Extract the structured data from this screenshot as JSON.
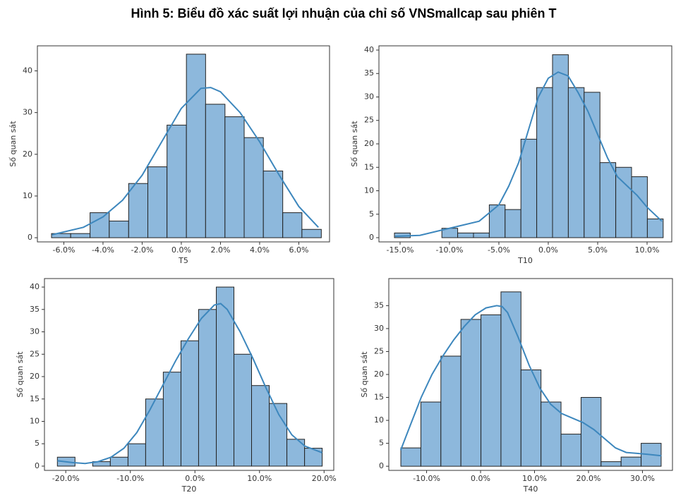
{
  "title": "Hình 5: Biểu đồ xác suất lợi nhuận của chỉ số VNSmallcap sau phiên T",
  "chart_data": [
    {
      "type": "histogram",
      "x_label": "T5",
      "y_label": "Số quan sát",
      "bins": [
        -6.63,
        -5.65,
        -4.66,
        -3.68,
        -2.69,
        -1.71,
        -0.73,
        0.26,
        1.24,
        2.23,
        3.21,
        4.19,
        5.18,
        6.16,
        7.15
      ],
      "values": [
        1,
        1,
        6,
        4,
        13,
        17,
        27,
        44,
        32,
        29,
        24,
        16,
        6,
        2
      ],
      "kde": {
        "x": [
          -6.6,
          -5,
          -4,
          -3,
          -2,
          -1,
          0,
          1,
          1.5,
          2,
          3,
          4,
          5,
          6,
          7
        ],
        "y": [
          0.7,
          2.5,
          5,
          9,
          15,
          23,
          31,
          35.8,
          36,
          35,
          30,
          23,
          15,
          7.5,
          2.5
        ]
      },
      "bar_color": "#8db8dc",
      "line_color": "#3d87bd",
      "xlim": [
        -7.35,
        7.57
      ],
      "ylim": [
        -1,
        46
      ],
      "xticks": [
        {
          "value": -6,
          "label": "-6.0%"
        },
        {
          "value": -4,
          "label": "-4.0%"
        },
        {
          "value": -2,
          "label": "-2.0%"
        },
        {
          "value": 0,
          "label": "0.0%"
        },
        {
          "value": 2,
          "label": "2.0%"
        },
        {
          "value": 4,
          "label": "4.0%"
        },
        {
          "value": 6,
          "label": "6.0%"
        }
      ],
      "yticks": [
        0,
        10,
        20,
        30,
        40
      ]
    },
    {
      "type": "histogram",
      "x_label": "T10",
      "y_label": "Số quan sát",
      "bins": [
        -15.57,
        -13.97,
        -12.37,
        -10.77,
        -9.17,
        -7.57,
        -5.97,
        -4.37,
        -2.77,
        -1.17,
        0.43,
        2.03,
        3.63,
        5.23,
        6.83,
        8.43,
        10.03,
        11.63
      ],
      "values": [
        1,
        0,
        0,
        2,
        1,
        1,
        7,
        6,
        21,
        32,
        39,
        32,
        31,
        16,
        15,
        13,
        4
      ],
      "kde": {
        "x": [
          -15.5,
          -13,
          -11,
          -9,
          -7,
          -5,
          -4,
          -3,
          -2,
          -1,
          0,
          1,
          2,
          3,
          4,
          5,
          6,
          7,
          8,
          9,
          10,
          11.5
        ],
        "y": [
          0.3,
          0.5,
          1.5,
          2.5,
          3.5,
          7,
          11,
          16,
          23,
          30,
          34,
          35.3,
          34.5,
          31,
          27,
          22,
          17,
          13,
          11,
          9,
          6.5,
          3.5
        ]
      },
      "bar_color": "#8db8dc",
      "line_color": "#3d87bd",
      "xlim": [
        -17.14,
        12.5
      ],
      "ylim": [
        -0.9,
        40.9
      ],
      "xticks": [
        {
          "value": -15,
          "label": "-15.0%"
        },
        {
          "value": -10,
          "label": "-10.0%"
        },
        {
          "value": -5,
          "label": "-5.0%"
        },
        {
          "value": 0,
          "label": "0.0%"
        },
        {
          "value": 5,
          "label": "5.0%"
        },
        {
          "value": 10,
          "label": "10.0%"
        }
      ],
      "yticks": [
        0,
        5,
        10,
        15,
        20,
        25,
        30,
        35,
        40
      ]
    },
    {
      "type": "histogram",
      "x_label": "T20",
      "y_label": "Số quan sát",
      "bins": [
        -21.3,
        -18.57,
        -15.83,
        -13.1,
        -10.36,
        -7.63,
        -4.9,
        -2.16,
        0.57,
        3.31,
        6.04,
        8.77,
        11.51,
        14.24,
        16.98,
        19.71
      ],
      "values": [
        2,
        0,
        1,
        2,
        5,
        15,
        21,
        28,
        35,
        40,
        25,
        18,
        14,
        6,
        4
      ],
      "kde": {
        "x": [
          -21.3,
          -19,
          -17,
          -15,
          -13,
          -11,
          -9,
          -7,
          -5,
          -3,
          -1,
          1,
          3,
          4,
          5,
          7,
          9,
          11,
          13,
          15,
          17,
          19.7
        ],
        "y": [
          1.2,
          0.8,
          0.6,
          1,
          2,
          4,
          7.5,
          12.5,
          18,
          23.5,
          28.5,
          33,
          36,
          36.3,
          35,
          30,
          24,
          17.5,
          11.5,
          7,
          4.5,
          3
        ]
      },
      "bar_color": "#8db8dc",
      "line_color": "#3d87bd",
      "xlim": [
        -23.3,
        21.5
      ],
      "ylim": [
        -0.95,
        41.9
      ],
      "xticks": [
        {
          "value": -20,
          "label": "-20.0%"
        },
        {
          "value": -10,
          "label": "-10.0%"
        },
        {
          "value": 0,
          "label": "0.0%"
        },
        {
          "value": 10,
          "label": "10.0%"
        },
        {
          "value": 20,
          "label": "20.0%"
        }
      ],
      "yticks": [
        0,
        5,
        10,
        15,
        20,
        25,
        30,
        35,
        40
      ]
    },
    {
      "type": "histogram",
      "x_label": "T40",
      "y_label": "Số quan sát",
      "bins": [
        -14.77,
        -11.06,
        -7.35,
        -3.64,
        0.07,
        3.78,
        7.49,
        11.2,
        14.91,
        18.62,
        22.33,
        26.04,
        29.75,
        33.46
      ],
      "values": [
        4,
        14,
        24,
        32,
        33,
        38,
        21,
        14,
        7,
        15,
        1,
        2,
        5
      ],
      "kde": {
        "x": [
          -14.8,
          -13,
          -11,
          -9,
          -7,
          -5,
          -3,
          -1,
          1,
          3,
          4,
          5,
          7,
          9,
          11,
          13,
          15,
          17,
          19,
          21,
          23,
          25,
          27,
          29,
          31,
          33.5
        ],
        "y": [
          3.5,
          9,
          15,
          20,
          24,
          27.5,
          30.5,
          33,
          34.5,
          35,
          34.8,
          33.5,
          28,
          22,
          17,
          13.5,
          11.5,
          10.5,
          9.5,
          8,
          6,
          4,
          3,
          2.8,
          2.6,
          2.3
        ]
      },
      "bar_color": "#8db8dc",
      "line_color": "#3d87bd",
      "xlim": [
        -17,
        35.56
      ],
      "ylim": [
        -0.9,
        40.9
      ],
      "xticks": [
        {
          "value": -10,
          "label": "-10.0%"
        },
        {
          "value": 0,
          "label": "0.0%"
        },
        {
          "value": 10,
          "label": "10.0%"
        },
        {
          "value": 20,
          "label": "20.0%"
        },
        {
          "value": 30,
          "label": "30.0%"
        }
      ],
      "yticks": [
        0,
        5,
        10,
        15,
        20,
        25,
        30,
        35
      ]
    }
  ]
}
